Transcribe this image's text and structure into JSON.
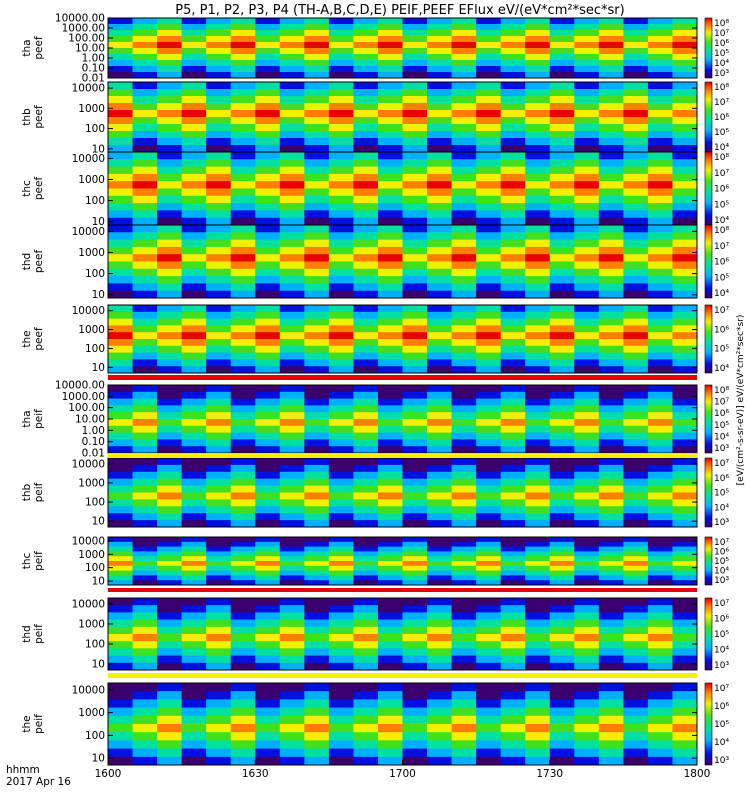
{
  "chart_data": {
    "type": "heatmap",
    "title": "P5, P1, P2, P3, P4 (TH-A,B,C,D,E) PEIF,PEEF EFlux eV/(eV*cm²*sec*sr)",
    "xlabel_top": "hhmm",
    "xlabel_bottom": "2017 Apr 16",
    "x_ticks": [
      "1600",
      "1630",
      "1700",
      "1730",
      "1800"
    ],
    "x_range": [
      "1600",
      "1800"
    ],
    "colorbar_label": "[eV/(cm²-s-sr-eV)] eV/(eV*cm²*sec*sr)",
    "panels": [
      {
        "probe": "tha",
        "product": "peef",
        "y_log": true,
        "y_range": [
          0.01,
          10000
        ],
        "y_ticks": [
          "10000.00",
          "1000.00",
          "100.00",
          "10.00",
          "1.00",
          "0.10",
          "0.01"
        ],
        "cbar_ticks": [
          "10⁸",
          "10⁷",
          "10⁶",
          "10⁵",
          "10⁴",
          "10³"
        ]
      },
      {
        "probe": "thb",
        "product": "peef",
        "y_log": true,
        "y_range": [
          7,
          20000
        ],
        "y_ticks": [
          "10000",
          "1000",
          "100",
          "10"
        ],
        "cbar_ticks": [
          "10⁸",
          "10⁷",
          "10⁶",
          "10⁵",
          "10⁴"
        ]
      },
      {
        "probe": "thc",
        "product": "peef",
        "y_log": true,
        "y_range": [
          7,
          20000
        ],
        "y_ticks": [
          "10000",
          "1000",
          "100",
          "10"
        ],
        "cbar_ticks": [
          "10⁸",
          "10⁷",
          "10⁶",
          "10⁵",
          "10⁴"
        ]
      },
      {
        "probe": "thd",
        "product": "peef",
        "y_log": true,
        "y_range": [
          7,
          20000
        ],
        "y_ticks": [
          "10000",
          "1000",
          "100",
          "10"
        ],
        "cbar_ticks": [
          "10⁸",
          "10⁷",
          "10⁶",
          "10⁵",
          "10⁴"
        ]
      },
      {
        "probe": "the",
        "product": "peef",
        "y_log": true,
        "y_range": [
          5,
          20000
        ],
        "y_ticks": [
          "10000",
          "1000",
          "100",
          "10"
        ],
        "cbar_ticks": [
          "10⁷",
          "10⁶",
          "10⁵",
          "10⁴"
        ]
      },
      {
        "probe": "tha",
        "product": "peif",
        "y_log": true,
        "y_range": [
          0.01,
          10000
        ],
        "y_ticks": [
          "10000.00",
          "1000.00",
          "100.00",
          "10.00",
          "1.00",
          "0.10",
          "0.01"
        ],
        "cbar_ticks": [
          "10⁸",
          "10⁷",
          "10⁶",
          "10⁵",
          "10⁴",
          "10³"
        ]
      },
      {
        "probe": "thb",
        "product": "peif",
        "y_log": true,
        "y_range": [
          5,
          20000
        ],
        "y_ticks": [
          "10000",
          "1000",
          "100",
          "10"
        ],
        "cbar_ticks": [
          "10⁷",
          "10⁶",
          "10⁵",
          "10⁴",
          "10³"
        ]
      },
      {
        "probe": "thc",
        "product": "peif",
        "y_log": true,
        "y_range": [
          5,
          20000
        ],
        "y_ticks": [
          "10000",
          "1000",
          "100",
          "10"
        ],
        "cbar_ticks": [
          "10⁷",
          "10⁶",
          "10⁵",
          "10⁴",
          "10³"
        ]
      },
      {
        "probe": "thd",
        "product": "peif",
        "y_log": true,
        "y_range": [
          5,
          20000
        ],
        "y_ticks": [
          "10000",
          "1000",
          "100",
          "10"
        ],
        "cbar_ticks": [
          "10⁷",
          "10⁶",
          "10⁵",
          "10⁴",
          "10³"
        ]
      },
      {
        "probe": "the",
        "product": "peif",
        "y_log": true,
        "y_range": [
          5,
          20000
        ],
        "y_ticks": [
          "10000",
          "1000",
          "100",
          "10"
        ],
        "cbar_ticks": [
          "10⁷",
          "10⁶",
          "10⁵",
          "10⁴",
          "10³"
        ]
      }
    ]
  }
}
